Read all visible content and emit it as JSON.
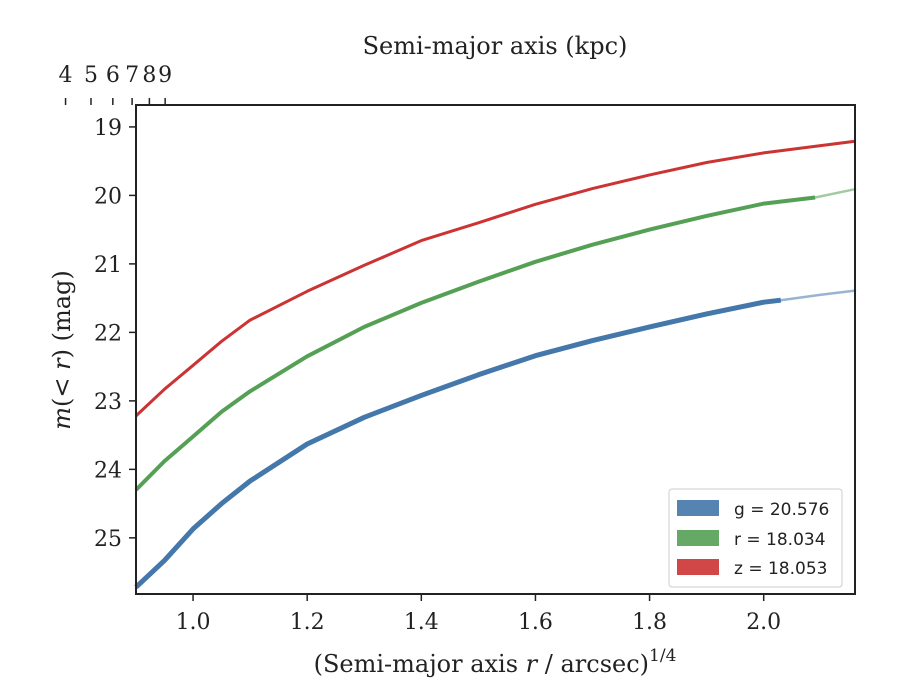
{
  "chart_data": {
    "type": "line",
    "xlabel": "(Semi-major axis r / arcsec)^1/4",
    "ylabel": "m(< r) (mag)",
    "top_xlabel": "Semi-major axis (kpc)",
    "xlim": [
      0.9,
      2.16
    ],
    "ylim": [
      25.82,
      18.68
    ],
    "y_inverted": true,
    "xticks": [
      1.0,
      1.2,
      1.4,
      1.6,
      1.8,
      2.0
    ],
    "xtick_labels": [
      "1.0",
      "1.2",
      "1.4",
      "1.6",
      "1.8",
      "2.0"
    ],
    "yticks": [
      19,
      20,
      21,
      22,
      23,
      24,
      25
    ],
    "ytick_labels": [
      "19",
      "20",
      "21",
      "22",
      "23",
      "24",
      "25"
    ],
    "top_xticks_kpc": [
      4,
      5,
      6,
      7,
      8,
      9
    ],
    "top_xtick_labels": [
      "4",
      "5",
      "6",
      "7",
      "8",
      "9"
    ],
    "top_axis_note": "kpc = 11.0 * x^4 (top tick positions at x = (kpc/11.0)^0.25)",
    "grid": false,
    "legend_position": "lower-right",
    "series": [
      {
        "name": "g = 20.576",
        "legend_label": "g = 20.576",
        "color": "#4477aa",
        "x": [
          0.9,
          0.95,
          1.0,
          1.05,
          1.1,
          1.2,
          1.3,
          1.4,
          1.5,
          1.6,
          1.7,
          1.8,
          1.9,
          2.0,
          2.03
        ],
        "y": [
          25.72,
          25.33,
          24.87,
          24.5,
          24.17,
          23.63,
          23.24,
          22.92,
          22.62,
          22.34,
          22.12,
          21.92,
          21.73,
          21.56,
          21.53
        ],
        "extension_x": [
          2.03,
          2.1,
          2.16
        ],
        "extension_y": [
          21.53,
          21.45,
          21.39
        ]
      },
      {
        "name": "r = 18.034",
        "legend_label": "r = 18.034",
        "color": "#55a055",
        "x": [
          0.9,
          0.95,
          1.0,
          1.05,
          1.1,
          1.2,
          1.3,
          1.4,
          1.5,
          1.6,
          1.7,
          1.8,
          1.9,
          2.0,
          2.09
        ],
        "y": [
          24.3,
          23.88,
          23.52,
          23.16,
          22.86,
          22.35,
          21.92,
          21.57,
          21.26,
          20.97,
          20.72,
          20.5,
          20.3,
          20.12,
          20.03
        ],
        "extension_x": [
          2.09,
          2.16
        ],
        "extension_y": [
          20.03,
          19.91
        ]
      },
      {
        "name": "z = 18.053",
        "legend_label": "z = 18.053",
        "color": "#cc3333",
        "x": [
          0.9,
          0.95,
          1.0,
          1.05,
          1.1,
          1.2,
          1.3,
          1.4,
          1.5,
          1.6,
          1.7,
          1.8,
          1.9,
          2.0,
          2.16
        ],
        "y": [
          23.22,
          22.83,
          22.48,
          22.13,
          21.82,
          21.4,
          21.02,
          20.66,
          20.4,
          20.13,
          19.9,
          19.7,
          19.52,
          19.38,
          19.21
        ],
        "extension_x": [],
        "extension_y": []
      }
    ]
  }
}
